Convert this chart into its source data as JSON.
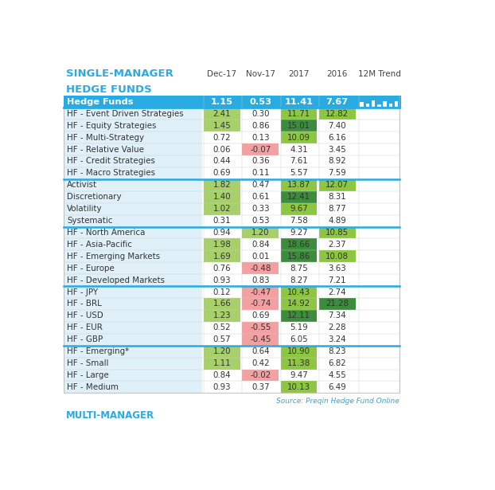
{
  "title_line1": "SINGLE-MANAGER",
  "title_line2": "HEDGE FUNDS",
  "title_color": "#29AAE1",
  "header_row": {
    "label": "Hedge Funds",
    "values": [
      "1.15",
      "0.53",
      "11.41",
      "7.67"
    ],
    "bg_color": "#29AAE1",
    "text_color": "#FFFFFF",
    "cell_colors": [
      "cyan",
      "cyan",
      "cyan",
      "cyan"
    ]
  },
  "sections": [
    {
      "rows": [
        {
          "label": "HF - Event Driven Strategies",
          "values": [
            "2.41",
            "0.30",
            "11.71",
            "12.82"
          ],
          "cell_colors": [
            "ltgreen",
            "white",
            "green",
            "green"
          ]
        },
        {
          "label": "HF - Equity Strategies",
          "values": [
            "1.45",
            "0.86",
            "15.01",
            "7.40"
          ],
          "cell_colors": [
            "ltgreen",
            "white",
            "dkgreen",
            "white"
          ]
        },
        {
          "label": "HF - Multi-Strategy",
          "values": [
            "0.72",
            "0.13",
            "10.09",
            "6.16"
          ],
          "cell_colors": [
            "white",
            "white",
            "green",
            "white"
          ]
        },
        {
          "label": "HF - Relative Value",
          "values": [
            "0.06",
            "-0.07",
            "4.31",
            "3.45"
          ],
          "cell_colors": [
            "white",
            "pink",
            "white",
            "white"
          ]
        },
        {
          "label": "HF - Credit Strategies",
          "values": [
            "0.44",
            "0.36",
            "7.61",
            "8.92"
          ],
          "cell_colors": [
            "white",
            "white",
            "white",
            "white"
          ]
        },
        {
          "label": "HF - Macro Strategies",
          "values": [
            "0.69",
            "0.11",
            "5.57",
            "7.59"
          ],
          "cell_colors": [
            "white",
            "white",
            "white",
            "white"
          ]
        }
      ]
    },
    {
      "rows": [
        {
          "label": "Activist",
          "values": [
            "1.82",
            "0.47",
            "13.87",
            "12.07"
          ],
          "cell_colors": [
            "ltgreen",
            "white",
            "green",
            "green"
          ]
        },
        {
          "label": "Discretionary",
          "values": [
            "1.40",
            "0.61",
            "12.41",
            "8.31"
          ],
          "cell_colors": [
            "ltgreen",
            "white",
            "dkgreen",
            "white"
          ]
        },
        {
          "label": "Volatility",
          "values": [
            "1.02",
            "0.33",
            "9.67",
            "8.77"
          ],
          "cell_colors": [
            "ltgreen",
            "white",
            "green",
            "white"
          ]
        },
        {
          "label": "Systematic",
          "values": [
            "0.31",
            "0.53",
            "7.58",
            "4.89"
          ],
          "cell_colors": [
            "white",
            "white",
            "white",
            "white"
          ]
        }
      ]
    },
    {
      "rows": [
        {
          "label": "HF - North America",
          "values": [
            "0.94",
            "1.20",
            "9.27",
            "10.85"
          ],
          "cell_colors": [
            "white",
            "ltgreen",
            "white",
            "green"
          ]
        },
        {
          "label": "HF - Asia-Pacific",
          "values": [
            "1.98",
            "0.84",
            "18.66",
            "2.37"
          ],
          "cell_colors": [
            "ltgreen",
            "white",
            "dkgreen",
            "white"
          ]
        },
        {
          "label": "HF - Emerging Markets",
          "values": [
            "1.69",
            "0.01",
            "15.86",
            "10.08"
          ],
          "cell_colors": [
            "ltgreen",
            "white",
            "dkgreen",
            "green"
          ]
        },
        {
          "label": "HF - Europe",
          "values": [
            "0.76",
            "-0.48",
            "8.75",
            "3.63"
          ],
          "cell_colors": [
            "white",
            "pink",
            "white",
            "white"
          ]
        },
        {
          "label": "HF - Developed Markets",
          "values": [
            "0.93",
            "0.83",
            "8.27",
            "7.21"
          ],
          "cell_colors": [
            "white",
            "white",
            "white",
            "white"
          ]
        }
      ]
    },
    {
      "rows": [
        {
          "label": "HF - JPY",
          "values": [
            "0.12",
            "-0.47",
            "10.43",
            "2.74"
          ],
          "cell_colors": [
            "white",
            "pink",
            "green",
            "white"
          ]
        },
        {
          "label": "HF - BRL",
          "values": [
            "1.66",
            "-0.74",
            "14.92",
            "21.28"
          ],
          "cell_colors": [
            "ltgreen",
            "pink",
            "green",
            "dkgreen"
          ]
        },
        {
          "label": "HF - USD",
          "values": [
            "1.23",
            "0.69",
            "12.11",
            "7.34"
          ],
          "cell_colors": [
            "ltgreen",
            "white",
            "dkgreen",
            "white"
          ]
        },
        {
          "label": "HF - EUR",
          "values": [
            "0.52",
            "-0.55",
            "5.19",
            "2.28"
          ],
          "cell_colors": [
            "white",
            "pink",
            "white",
            "white"
          ]
        },
        {
          "label": "HF - GBP",
          "values": [
            "0.57",
            "-0.45",
            "6.05",
            "3.24"
          ],
          "cell_colors": [
            "white",
            "pink",
            "white",
            "white"
          ]
        }
      ]
    },
    {
      "rows": [
        {
          "label": "HF - Emerging*",
          "values": [
            "1.20",
            "0.64",
            "10.90",
            "8.23"
          ],
          "cell_colors": [
            "ltgreen",
            "white",
            "green",
            "white"
          ]
        },
        {
          "label": "HF - Small",
          "values": [
            "1.11",
            "0.42",
            "11.38",
            "6.82"
          ],
          "cell_colors": [
            "ltgreen",
            "white",
            "green",
            "white"
          ]
        },
        {
          "label": "HF - Large",
          "values": [
            "0.84",
            "-0.02",
            "9.47",
            "4.55"
          ],
          "cell_colors": [
            "white",
            "pink",
            "white",
            "white"
          ]
        },
        {
          "label": "HF - Medium",
          "values": [
            "0.93",
            "0.37",
            "10.13",
            "6.49"
          ],
          "cell_colors": [
            "white",
            "white",
            "green",
            "white"
          ]
        }
      ]
    }
  ],
  "color_map": {
    "cyan": "#29AAE1",
    "green": "#8DC641",
    "ltgreen": "#A8D06A",
    "dkgreen": "#3B8C3B",
    "pink": "#F5A0A0",
    "white": "#FFFFFF",
    "rowbg": "#E0F0F8"
  },
  "col_header_labels": [
    "Dec-17",
    "Nov-17",
    "2017",
    "2016",
    "12M Trend"
  ],
  "source_text": "Source: Preqin Hedge Fund Online",
  "source_color": "#29AAE1",
  "trend_bars": [
    0.55,
    0.3,
    0.65,
    0.25,
    0.6,
    0.3,
    0.58
  ]
}
